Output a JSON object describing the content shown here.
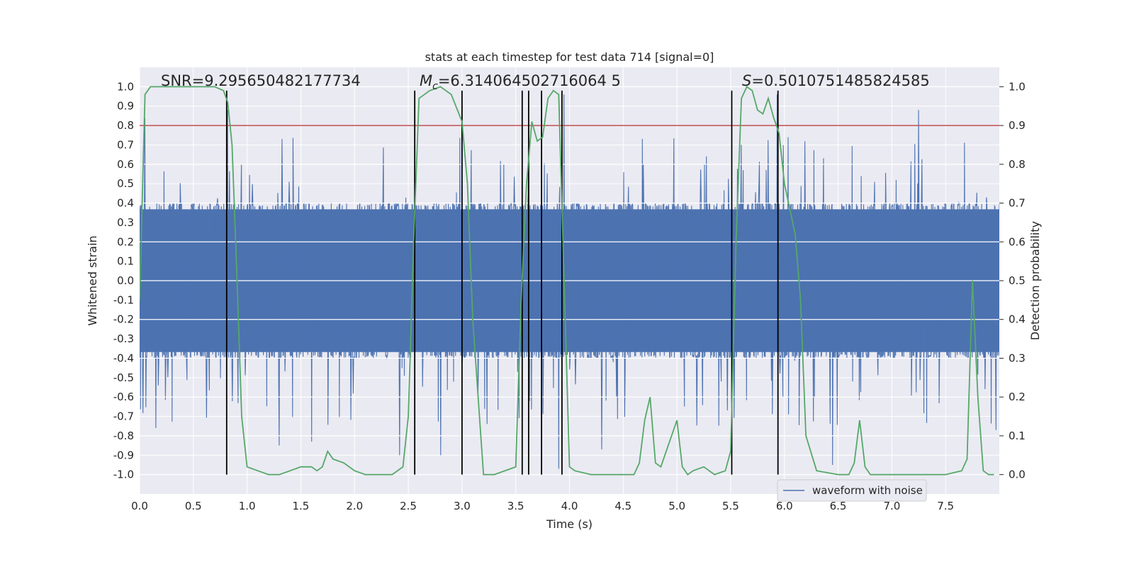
{
  "chart_data": {
    "type": "line",
    "title": "stats at each timestep for test data 714 [signal=0]",
    "xlabel": "Time (s)",
    "ylabel": "Whitened strain",
    "y2label": "Detection probability",
    "xlim": [
      0.0,
      8.0
    ],
    "ylim": [
      -1.1,
      1.1
    ],
    "y2lim": [
      -0.05,
      1.05
    ],
    "xticks": [
      "0.0",
      "0.5",
      "1.0",
      "1.5",
      "2.0",
      "2.5",
      "3.0",
      "3.5",
      "4.0",
      "4.5",
      "5.0",
      "5.5",
      "6.0",
      "6.5",
      "7.0",
      "7.5"
    ],
    "yticks": [
      "1.0",
      "0.9",
      "0.8",
      "0.7",
      "0.6",
      "0.5",
      "0.4",
      "0.3",
      "0.2",
      "0.1",
      "0.0",
      "-0.1",
      "-0.2",
      "-0.3",
      "-0.4",
      "-0.5",
      "-0.6",
      "-0.7",
      "-0.8",
      "-0.9",
      "-1.0"
    ],
    "y2ticks": [
      "1.0",
      "0.9",
      "0.8",
      "0.7",
      "0.6",
      "0.5",
      "0.4",
      "0.3",
      "0.2",
      "0.1",
      "0.0"
    ],
    "grid": true,
    "legend": {
      "placement": "lower-right",
      "entries": [
        "waveform with noise"
      ]
    },
    "annotations": {
      "snr": "SNR=9.295650482177734",
      "mc_symbol": "M",
      "mc_sub": "c",
      "mc_value": "=6.314064502716064 5",
      "s_symbol": "S",
      "s_value": "=0.5010751485824585"
    },
    "threshold": {
      "value": 0.9,
      "axis": "y2",
      "color": "#c44e52"
    },
    "vlines": [
      0.81,
      2.56,
      3.0,
      3.56,
      3.62,
      3.74,
      3.93,
      5.51,
      5.94
    ],
    "vline_range": [
      -1.0,
      0.98
    ],
    "waveform": {
      "name": "waveform with noise",
      "color": "#4c72b0",
      "sample_count": 1800,
      "core_amplitude": 0.4,
      "spike_peaks": [
        {
          "x": 0.05,
          "y": 0.84
        },
        {
          "x": 0.15,
          "y": -0.76
        },
        {
          "x": 0.82,
          "y": 0.88
        },
        {
          "x": 1.3,
          "y": -0.85
        },
        {
          "x": 1.6,
          "y": -0.83
        },
        {
          "x": 2.42,
          "y": -0.9
        },
        {
          "x": 2.8,
          "y": -0.9
        },
        {
          "x": 3.62,
          "y": 0.91
        },
        {
          "x": 3.9,
          "y": -0.97
        },
        {
          "x": 3.95,
          "y": 0.96
        },
        {
          "x": 4.3,
          "y": -0.87
        },
        {
          "x": 5.93,
          "y": 0.96
        },
        {
          "x": 6.45,
          "y": -0.95
        },
        {
          "x": 7.25,
          "y": 0.88
        },
        {
          "x": 7.97,
          "y": -0.77
        }
      ]
    },
    "probability": {
      "name": "detection probability",
      "color": "#55a868",
      "x": [
        0.0,
        0.05,
        0.1,
        0.2,
        0.4,
        0.6,
        0.7,
        0.78,
        0.82,
        0.86,
        0.9,
        0.95,
        1.0,
        1.1,
        1.2,
        1.3,
        1.4,
        1.5,
        1.6,
        1.65,
        1.7,
        1.75,
        1.8,
        1.9,
        2.0,
        2.1,
        2.2,
        2.35,
        2.45,
        2.5,
        2.55,
        2.6,
        2.7,
        2.8,
        2.9,
        3.0,
        3.05,
        3.1,
        3.2,
        3.3,
        3.5,
        3.55,
        3.6,
        3.65,
        3.7,
        3.75,
        3.8,
        3.85,
        3.9,
        3.95,
        4.0,
        4.05,
        4.2,
        4.4,
        4.6,
        4.65,
        4.7,
        4.75,
        4.8,
        4.85,
        5.0,
        5.05,
        5.1,
        5.15,
        5.25,
        5.35,
        5.45,
        5.5,
        5.55,
        5.6,
        5.65,
        5.7,
        5.75,
        5.8,
        5.85,
        5.9,
        5.95,
        6.0,
        6.1,
        6.15,
        6.2,
        6.3,
        6.5,
        6.6,
        6.65,
        6.7,
        6.75,
        6.8,
        7.0,
        7.5,
        7.65,
        7.7,
        7.75,
        7.8,
        7.85,
        7.9,
        7.95
      ],
      "y": [
        0.45,
        0.98,
        1.0,
        1.0,
        1.0,
        1.0,
        1.0,
        0.99,
        0.96,
        0.85,
        0.55,
        0.15,
        0.02,
        0.01,
        0.0,
        0.0,
        0.01,
        0.02,
        0.02,
        0.01,
        0.02,
        0.06,
        0.04,
        0.03,
        0.01,
        0.0,
        0.0,
        0.0,
        0.02,
        0.15,
        0.6,
        0.97,
        0.99,
        1.0,
        0.98,
        0.91,
        0.75,
        0.4,
        0.0,
        0.0,
        0.02,
        0.45,
        0.75,
        0.91,
        0.86,
        0.87,
        0.97,
        0.99,
        0.98,
        0.5,
        0.02,
        0.01,
        0.0,
        0.0,
        0.0,
        0.03,
        0.14,
        0.2,
        0.03,
        0.02,
        0.14,
        0.02,
        0.0,
        0.01,
        0.02,
        0.0,
        0.01,
        0.06,
        0.6,
        0.97,
        1.0,
        0.99,
        0.94,
        0.93,
        0.97,
        0.92,
        0.88,
        0.75,
        0.62,
        0.45,
        0.1,
        0.01,
        0.0,
        0.0,
        0.03,
        0.14,
        0.02,
        0.0,
        0.0,
        0.0,
        0.01,
        0.04,
        0.5,
        0.2,
        0.01,
        0.0,
        0.0
      ]
    }
  }
}
